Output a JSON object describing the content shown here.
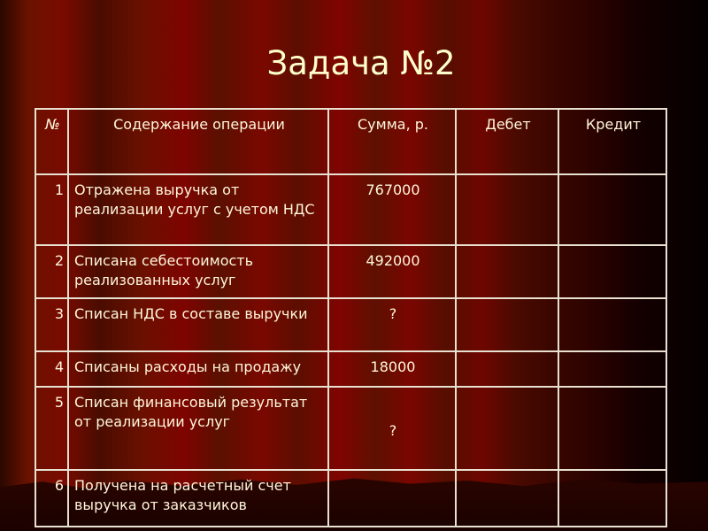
{
  "title": "Задача №2",
  "table": {
    "headers": [
      "№",
      "Содержание операции",
      "Сумма, р.",
      "Дебет",
      "Кредит"
    ],
    "rows": [
      {
        "num": "1",
        "operation": "Отражена выручка от реализации услуг с учетом НДС",
        "sum": "767000",
        "debit": "",
        "credit": ""
      },
      {
        "num": "2",
        "operation": "Списана себестоимость реализованных услуг",
        "sum": "492000",
        "debit": "",
        "credit": ""
      },
      {
        "num": "3",
        "operation": "Списан НДС в составе выручки",
        "sum": "?",
        "debit": "",
        "credit": ""
      },
      {
        "num": "4",
        "operation": "Списаны расходы на продажу",
        "sum": "18000",
        "debit": "",
        "credit": ""
      },
      {
        "num": "5",
        "operation": "Списан финансовый результат от реализации услуг",
        "sum": "?",
        "debit": "",
        "credit": ""
      },
      {
        "num": "6",
        "operation": "Получена на расчетный счет выручка от заказчиков",
        "sum": "",
        "debit": "",
        "credit": ""
      }
    ]
  }
}
